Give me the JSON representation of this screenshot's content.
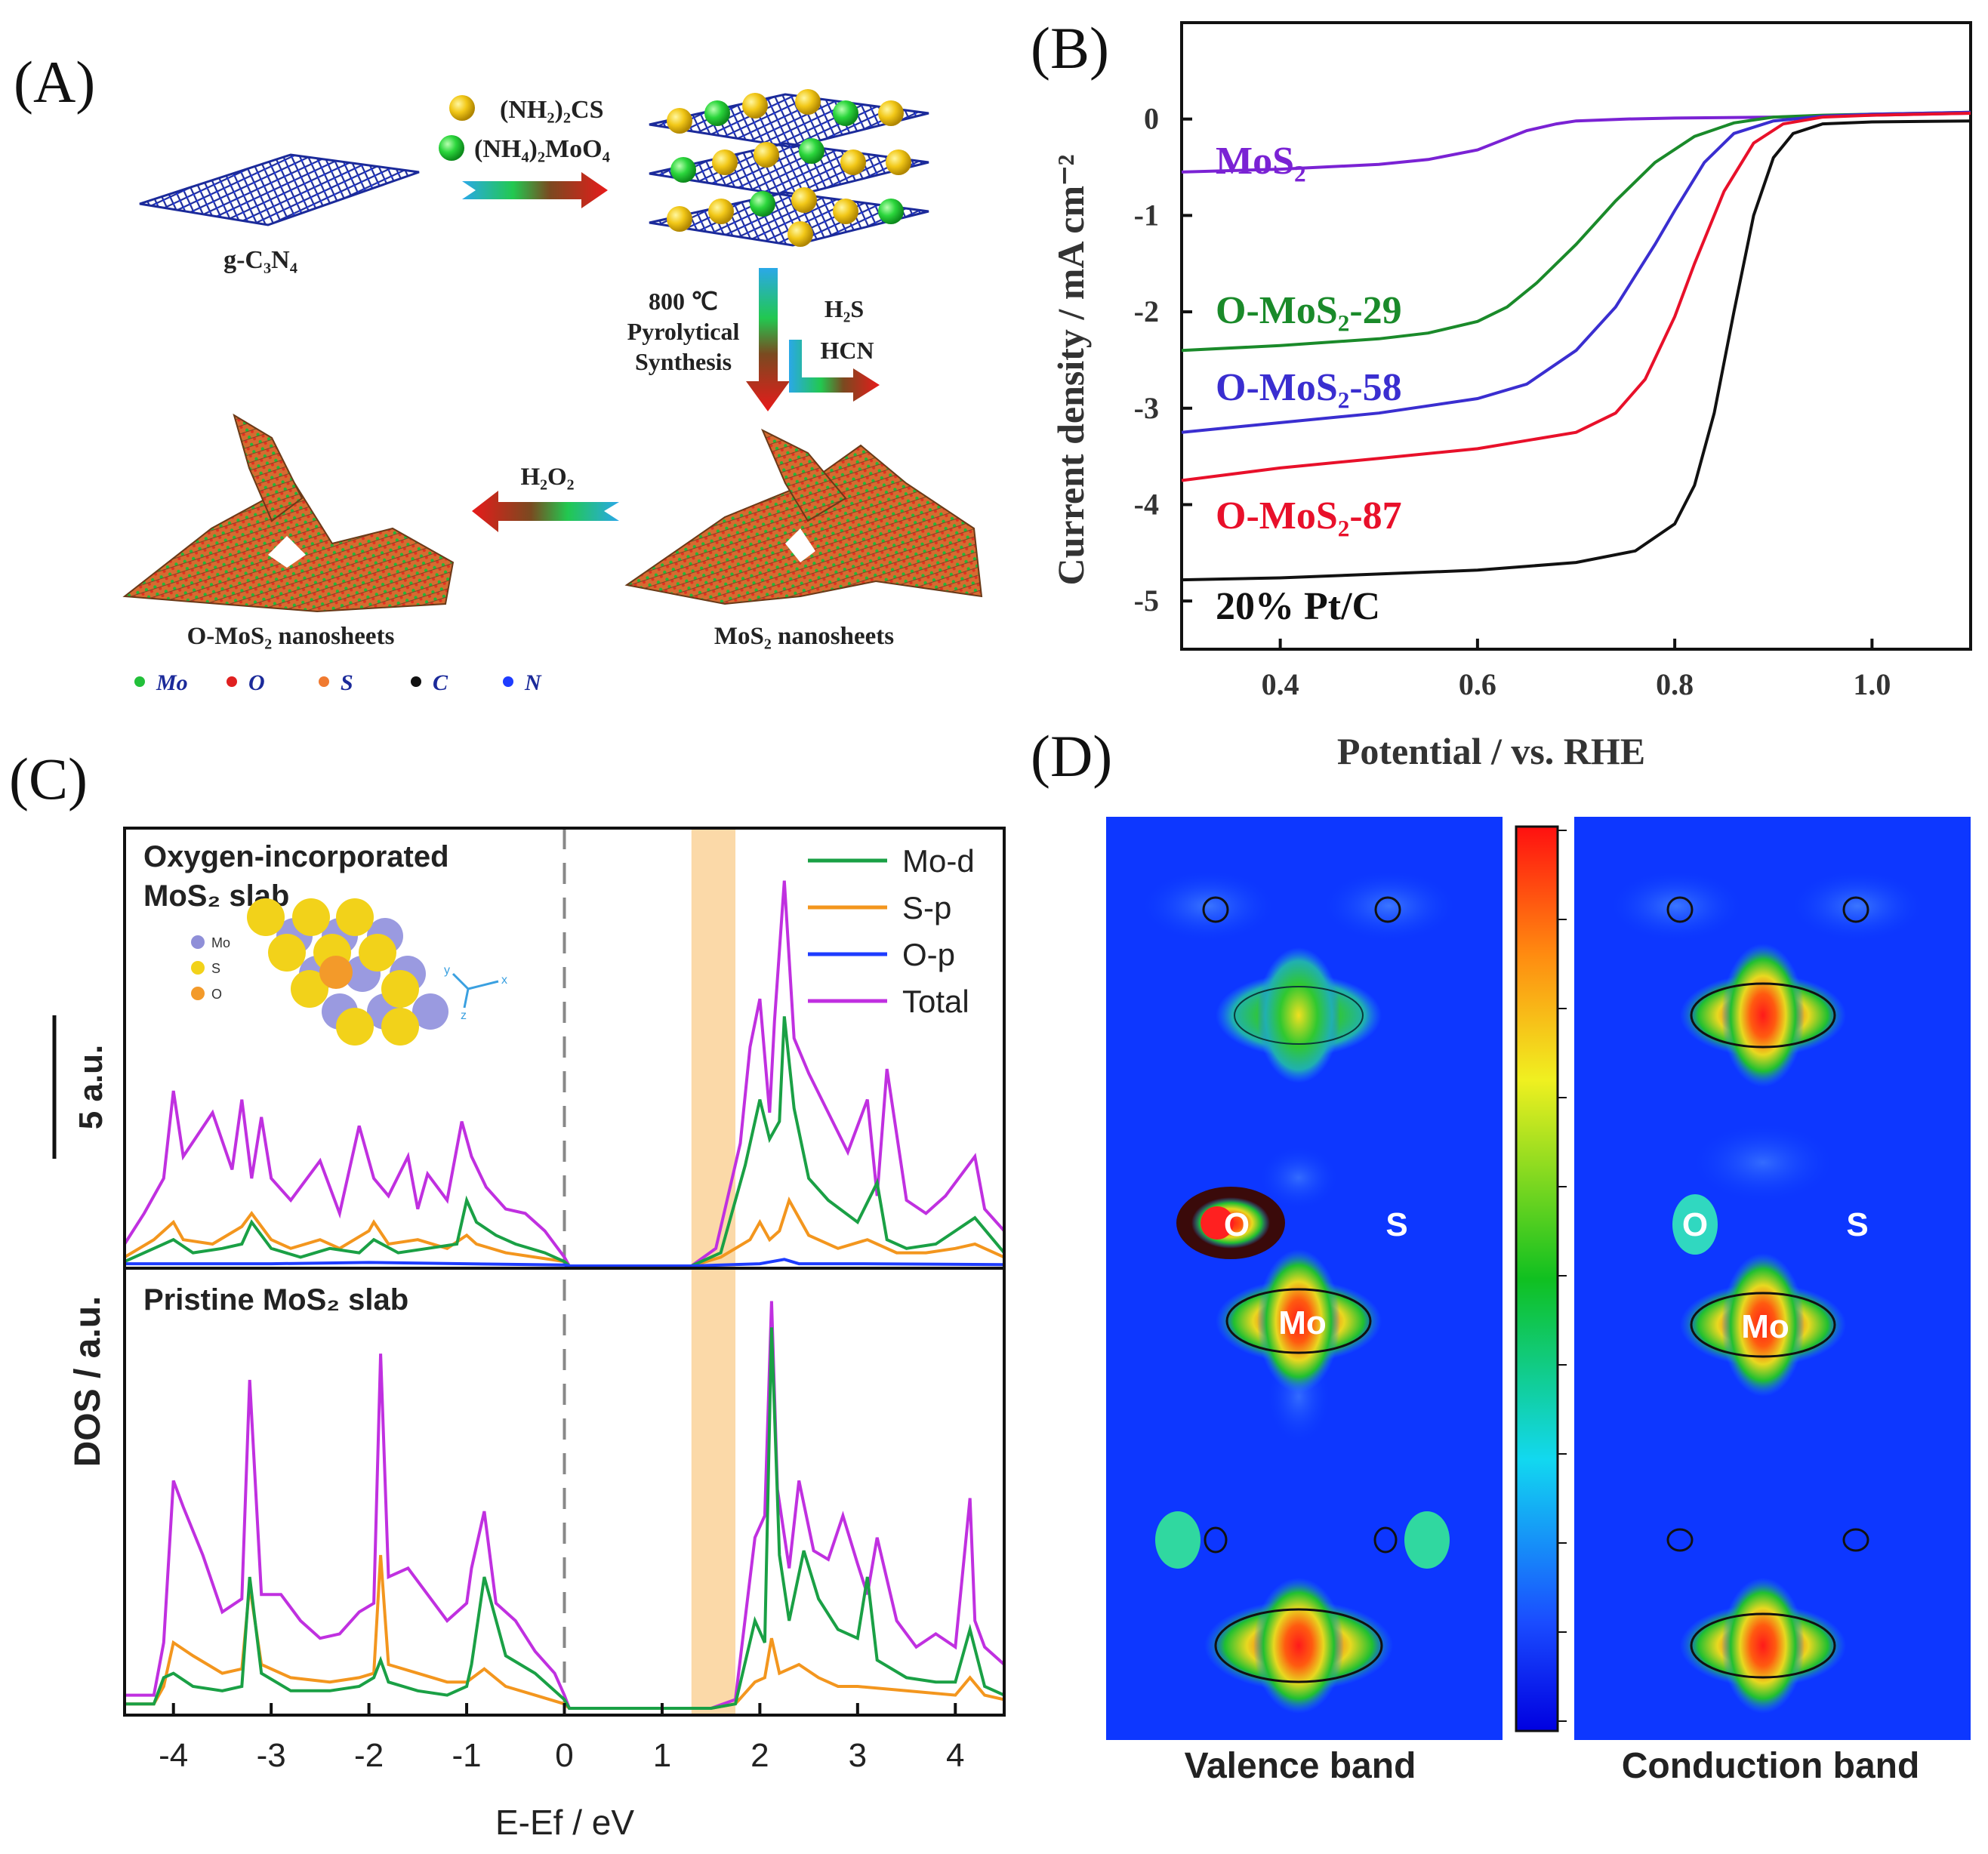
{
  "figure": {
    "colors": {
      "mo": "#22c03a",
      "o": "#e02020",
      "s": "#f07a30",
      "c": "#111111",
      "n": "#1e3cff",
      "s_atom": "#f2c818",
      "mo_atom": "#2bd63c",
      "lattice": "#1b2a9a"
    }
  },
  "panel_a": {
    "label": "(A)",
    "reagent1": "(NH₂)₂CS",
    "reagent2": "(NH₄)₂MoO₄",
    "substrate": "g-C₃N₄",
    "step_temp": "800 ℃",
    "step_line1": "Pyrolytical",
    "step_line2": "Synthesis",
    "gas1": "H₂S",
    "gas2": "HCN",
    "oxidant": "H₂O₂",
    "product_mos2": "MoS₂ nanosheets",
    "product_omos2": "O-MoS₂ nanosheets",
    "legend": [
      {
        "label": "Mo",
        "color": "#22c03a"
      },
      {
        "label": "O",
        "color": "#e02020"
      },
      {
        "label": "S",
        "color": "#f07a30"
      },
      {
        "label": "C",
        "color": "#111111"
      },
      {
        "label": "N",
        "color": "#1e3cff"
      }
    ]
  },
  "panel_c_inset": {
    "mo": "Mo",
    "s": "S",
    "o": "O",
    "axis_y": "y",
    "axis_x": "x",
    "axis_z": "z"
  },
  "panel_d": {
    "label": "(D)",
    "valence_caption": "Valence band",
    "conduction_caption": "Conduction band",
    "atom_o": "O",
    "atom_s": "S",
    "atom_mo": "Mo"
  },
  "chart_data": [
    {
      "panel": "(B)",
      "type": "line",
      "xlabel": "Potential / vs. RHE",
      "ylabel": "Current density / mA cm⁻²",
      "xlim": [
        0.3,
        1.1
      ],
      "ylim": [
        -5.5,
        1.0
      ],
      "xticks": [
        0.4,
        0.6,
        0.8,
        1.0
      ],
      "yticks": [
        0,
        -1,
        -2,
        -3,
        -4,
        -5
      ],
      "grid": false,
      "series": [
        {
          "name": "MoS₂",
          "color": "#7a22d4",
          "x": [
            0.3,
            0.4,
            0.5,
            0.55,
            0.6,
            0.62,
            0.65,
            0.68,
            0.7,
            0.75,
            0.8,
            0.9,
            1.0,
            1.1
          ],
          "y": [
            -0.55,
            -0.52,
            -0.47,
            -0.42,
            -0.32,
            -0.24,
            -0.12,
            -0.05,
            -0.02,
            0.0,
            0.01,
            0.02,
            0.04,
            0.06
          ]
        },
        {
          "name": "O-MoS₂-29",
          "color": "#1a8a2a",
          "x": [
            0.3,
            0.4,
            0.5,
            0.55,
            0.6,
            0.63,
            0.66,
            0.7,
            0.74,
            0.78,
            0.82,
            0.86,
            0.9,
            0.95,
            1.0,
            1.1
          ],
          "y": [
            -2.4,
            -2.35,
            -2.28,
            -2.22,
            -2.1,
            -1.95,
            -1.7,
            -1.3,
            -0.85,
            -0.45,
            -0.18,
            -0.04,
            0.02,
            0.04,
            0.05,
            0.07
          ]
        },
        {
          "name": "O-MoS₂-58",
          "color": "#3a2ed0",
          "x": [
            0.3,
            0.4,
            0.5,
            0.6,
            0.65,
            0.7,
            0.74,
            0.78,
            0.8,
            0.83,
            0.86,
            0.9,
            0.95,
            1.0,
            1.1
          ],
          "y": [
            -3.25,
            -3.15,
            -3.05,
            -2.9,
            -2.75,
            -2.4,
            -1.95,
            -1.3,
            -0.95,
            -0.45,
            -0.15,
            -0.02,
            0.03,
            0.05,
            0.07
          ]
        },
        {
          "name": "O-MoS₂-87",
          "color": "#e8102a",
          "x": [
            0.3,
            0.4,
            0.5,
            0.6,
            0.7,
            0.74,
            0.77,
            0.8,
            0.82,
            0.85,
            0.88,
            0.91,
            0.95,
            1.0,
            1.1
          ],
          "y": [
            -3.75,
            -3.62,
            -3.52,
            -3.42,
            -3.25,
            -3.05,
            -2.7,
            -2.05,
            -1.5,
            -0.75,
            -0.25,
            -0.05,
            0.02,
            0.04,
            0.06
          ]
        },
        {
          "name": "20% Pt/C",
          "color": "#111111",
          "x": [
            0.3,
            0.4,
            0.5,
            0.6,
            0.7,
            0.76,
            0.8,
            0.82,
            0.84,
            0.86,
            0.88,
            0.9,
            0.92,
            0.95,
            1.0,
            1.1
          ],
          "y": [
            -4.78,
            -4.76,
            -4.72,
            -4.68,
            -4.6,
            -4.48,
            -4.2,
            -3.8,
            -3.05,
            -2.0,
            -1.0,
            -0.4,
            -0.15,
            -0.05,
            -0.03,
            -0.02
          ]
        }
      ],
      "labels": [
        "MoS₂",
        "O-MoS₂-29",
        "O-MoS₂-58",
        "O-MoS₂-87",
        "20% Pt/C"
      ]
    },
    {
      "panel": "(C)",
      "type": "line",
      "xlabel": "E-Ef / eV",
      "ylabel": "DOS / a.u.",
      "xlim": [
        -4.5,
        4.5
      ],
      "xticks": [
        -4,
        -3,
        -2,
        -1,
        0,
        1,
        2,
        3,
        4
      ],
      "grid": false,
      "scale_bar": "5 a.u.",
      "legend": [
        "Mo-d",
        "S-p",
        "O-p",
        "Total"
      ],
      "legend_position": "top-right",
      "highlight_band": [
        1.3,
        1.75
      ],
      "subpanels": [
        {
          "title_line1": "Oxygen-incorporated",
          "title_line2": "MoS₂ slab",
          "series": [
            {
              "name": "Total",
              "color": "#c030e0",
              "x": [
                -4.5,
                -4.3,
                -4.1,
                -4.0,
                -3.9,
                -3.6,
                -3.4,
                -3.3,
                -3.2,
                -3.1,
                -3.0,
                -2.8,
                -2.5,
                -2.3,
                -2.1,
                -1.95,
                -1.8,
                -1.6,
                -1.5,
                -1.4,
                -1.2,
                -1.05,
                -0.95,
                -0.8,
                -0.6,
                -0.4,
                -0.2,
                0.0,
                0.05,
                1.3,
                1.55,
                1.8,
                1.9,
                2.0,
                2.1,
                2.15,
                2.25,
                2.35,
                2.5,
                2.7,
                2.9,
                3.1,
                3.2,
                3.3,
                3.5,
                3.7,
                3.9,
                4.1,
                4.2,
                4.3,
                4.5
              ],
              "y": [
                0.5,
                1.2,
                2.0,
                4.0,
                2.5,
                3.5,
                2.2,
                3.8,
                2.0,
                3.4,
                2.0,
                1.5,
                2.4,
                1.2,
                3.2,
                2.0,
                1.6,
                2.5,
                1.3,
                2.1,
                1.5,
                3.3,
                2.5,
                1.8,
                1.3,
                1.2,
                0.8,
                0.2,
                0,
                0,
                0.4,
                2.8,
                5.0,
                6.1,
                3.5,
                5.6,
                8.8,
                5.2,
                4.4,
                3.5,
                2.6,
                3.8,
                1.6,
                4.5,
                1.5,
                1.2,
                1.6,
                2.2,
                2.5,
                1.3,
                0.8
              ]
            },
            {
              "name": "S-p",
              "color": "#f3961e",
              "x": [
                -4.5,
                -4.2,
                -4.0,
                -3.9,
                -3.6,
                -3.3,
                -3.2,
                -3.0,
                -2.8,
                -2.5,
                -2.3,
                -2.0,
                -1.95,
                -1.8,
                -1.5,
                -1.2,
                -1.0,
                -0.9,
                -0.6,
                -0.3,
                0.0,
                0.05,
                1.3,
                1.6,
                1.9,
                2.0,
                2.1,
                2.2,
                2.3,
                2.5,
                2.8,
                3.1,
                3.2,
                3.4,
                3.7,
                4.0,
                4.2,
                4.5
              ],
              "y": [
                0.2,
                0.6,
                1.0,
                0.6,
                0.5,
                0.9,
                1.2,
                0.6,
                0.4,
                0.6,
                0.4,
                0.8,
                1.0,
                0.5,
                0.6,
                0.4,
                0.7,
                0.5,
                0.3,
                0.2,
                0.1,
                0,
                0,
                0.2,
                0.6,
                1.0,
                0.6,
                0.8,
                1.5,
                0.7,
                0.4,
                0.6,
                0.5,
                0.3,
                0.3,
                0.4,
                0.5,
                0.2
              ]
            },
            {
              "name": "Mo-d",
              "color": "#1aa045",
              "x": [
                -4.5,
                -4.2,
                -4.0,
                -3.8,
                -3.5,
                -3.3,
                -3.2,
                -3.0,
                -2.7,
                -2.4,
                -2.1,
                -1.95,
                -1.7,
                -1.4,
                -1.1,
                -1.0,
                -0.9,
                -0.7,
                -0.5,
                -0.2,
                0.0,
                0.05,
                1.3,
                1.6,
                1.85,
                2.0,
                2.1,
                2.2,
                2.25,
                2.35,
                2.5,
                2.7,
                3.0,
                3.2,
                3.3,
                3.5,
                3.8,
                4.0,
                4.2,
                4.5
              ],
              "y": [
                0.1,
                0.4,
                0.6,
                0.3,
                0.4,
                0.5,
                1.0,
                0.4,
                0.2,
                0.4,
                0.3,
                0.6,
                0.3,
                0.4,
                0.5,
                1.5,
                1.0,
                0.7,
                0.5,
                0.3,
                0.1,
                0,
                0,
                0.3,
                2.3,
                3.8,
                2.9,
                3.3,
                5.7,
                3.6,
                2.0,
                1.5,
                1.0,
                1.9,
                0.6,
                0.4,
                0.5,
                0.8,
                1.1,
                0.3
              ]
            },
            {
              "name": "O-p",
              "color": "#1e3cff",
              "x": [
                -4.5,
                -3.0,
                -2.0,
                0.0,
                0.05,
                1.3,
                2.0,
                2.25,
                2.4,
                3.0,
                4.5
              ],
              "y": [
                0.05,
                0.05,
                0.08,
                0.02,
                0,
                0,
                0.05,
                0.15,
                0.05,
                0.05,
                0.03
              ]
            }
          ]
        },
        {
          "title_line1": "Pristine MoS₂ slab",
          "title_line2": "",
          "series": [
            {
              "name": "Total",
              "color": "#c030e0",
              "x": [
                -4.5,
                -4.2,
                -4.1,
                -4.0,
                -3.9,
                -3.7,
                -3.5,
                -3.3,
                -3.22,
                -3.1,
                -2.9,
                -2.7,
                -2.5,
                -2.3,
                -2.1,
                -1.95,
                -1.88,
                -1.8,
                -1.6,
                -1.4,
                -1.2,
                -1.0,
                -0.95,
                -0.82,
                -0.7,
                -0.5,
                -0.3,
                -0.1,
                0.0,
                0.05,
                1.5,
                1.75,
                1.95,
                2.05,
                2.12,
                2.18,
                2.3,
                2.4,
                2.55,
                2.7,
                2.85,
                3.0,
                3.1,
                3.2,
                3.4,
                3.6,
                3.8,
                4.0,
                4.15,
                4.2,
                4.3,
                4.5
              ],
              "y": [
                0.3,
                0.3,
                1.5,
                5.2,
                4.6,
                3.5,
                2.2,
                2.5,
                7.5,
                2.6,
                2.6,
                2.0,
                1.6,
                1.7,
                2.2,
                2.4,
                8.1,
                3.0,
                3.2,
                2.6,
                2.0,
                2.4,
                3.2,
                4.5,
                2.4,
                2.0,
                1.3,
                0.8,
                0.3,
                0,
                0,
                0.2,
                3.9,
                4.4,
                9.3,
                5.0,
                3.2,
                5.2,
                3.6,
                3.4,
                4.4,
                3.3,
                2.6,
                3.9,
                2.0,
                1.4,
                1.7,
                1.4,
                4.8,
                2.0,
                1.4,
                1.0
              ]
            },
            {
              "name": "S-p",
              "color": "#f3961e",
              "x": [
                -4.5,
                -4.2,
                -4.1,
                -4.0,
                -3.8,
                -3.5,
                -3.3,
                -3.22,
                -3.1,
                -2.8,
                -2.4,
                -2.1,
                -1.95,
                -1.88,
                -1.8,
                -1.5,
                -1.2,
                -1.0,
                -0.82,
                -0.6,
                -0.3,
                0.0,
                0.05,
                1.5,
                1.75,
                1.95,
                2.05,
                2.12,
                2.2,
                2.4,
                2.6,
                2.8,
                3.0,
                3.5,
                4.0,
                4.15,
                4.3,
                4.5
              ],
              "y": [
                0.1,
                0.1,
                0.5,
                1.5,
                1.2,
                0.8,
                0.9,
                2.8,
                1.0,
                0.7,
                0.6,
                0.7,
                0.8,
                3.5,
                1.0,
                0.8,
                0.6,
                0.6,
                0.9,
                0.5,
                0.3,
                0.1,
                0,
                0,
                0.1,
                0.6,
                0.7,
                1.6,
                0.8,
                1.0,
                0.7,
                0.5,
                0.5,
                0.4,
                0.3,
                0.7,
                0.3,
                0.2
              ]
            },
            {
              "name": "Mo-d",
              "color": "#1aa045",
              "x": [
                -4.5,
                -4.2,
                -4.1,
                -4.0,
                -3.8,
                -3.5,
                -3.3,
                -3.22,
                -3.1,
                -2.8,
                -2.4,
                -2.1,
                -1.95,
                -1.88,
                -1.8,
                -1.5,
                -1.2,
                -1.0,
                -0.95,
                -0.82,
                -0.6,
                -0.3,
                0.0,
                0.05,
                1.5,
                1.75,
                1.95,
                2.05,
                2.12,
                2.2,
                2.3,
                2.45,
                2.6,
                2.8,
                3.0,
                3.1,
                3.2,
                3.5,
                3.8,
                4.0,
                4.15,
                4.3,
                4.5
              ],
              "y": [
                0.1,
                0.1,
                0.7,
                0.8,
                0.5,
                0.4,
                0.5,
                3.0,
                0.8,
                0.4,
                0.4,
                0.5,
                0.7,
                1.1,
                0.6,
                0.4,
                0.3,
                0.5,
                1.0,
                3.0,
                1.2,
                0.8,
                0.2,
                0,
                0,
                0.1,
                2.0,
                1.5,
                8.7,
                3.5,
                2.0,
                3.6,
                2.5,
                1.8,
                1.6,
                3.0,
                1.1,
                0.7,
                0.6,
                0.6,
                1.8,
                0.5,
                0.3
              ]
            }
          ]
        }
      ]
    }
  ]
}
